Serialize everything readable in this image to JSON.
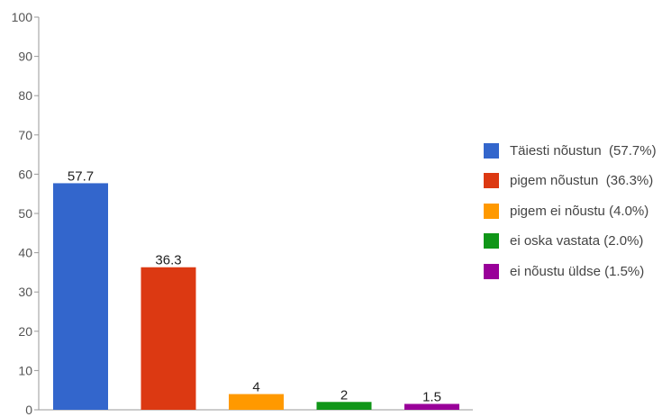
{
  "chart_data": {
    "type": "bar",
    "categories": [
      "Täiesti nõustun",
      "pigem nõustun",
      "pigem ei nõustu",
      "ei oska vastata",
      "ei nõustu üldse"
    ],
    "values": [
      57.7,
      36.3,
      4,
      2,
      1.5
    ],
    "value_labels": [
      "57.7",
      "36.3",
      "4",
      "2",
      "1.5"
    ],
    "colors": [
      "#3366cc",
      "#dc3912",
      "#ff9900",
      "#109618",
      "#990099"
    ],
    "ylim": [
      0,
      100
    ],
    "yticks": [
      "0",
      "10",
      "20",
      "30",
      "40",
      "50",
      "60",
      "70",
      "80",
      "90",
      "100"
    ],
    "title": "",
    "xlabel": "",
    "ylabel": "",
    "grid": false,
    "legend_position": "right",
    "legend": [
      "Täiesti nõustun  (57.7%)",
      "pigem nõustun  (36.3%)",
      "pigem ei nõustu (4.0%)",
      "ei oska vastata (2.0%)",
      "ei nõustu üldse (1.5%)"
    ]
  }
}
